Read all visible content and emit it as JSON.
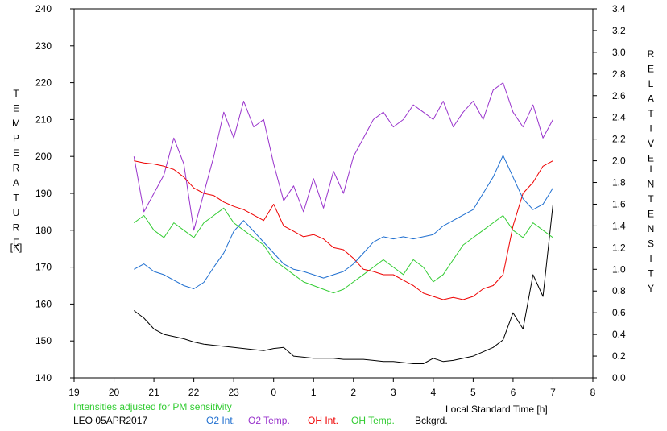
{
  "chart_data": {
    "type": "line",
    "title": "",
    "xlabel": "Local Standard Time [h]",
    "ylabel_left": "TEMPERATURE [K]",
    "ylabel_right": "RELATIVE INTENSITY",
    "note": "Intensities adjusted for PM sensitivity",
    "station": "LEO 05APR2017",
    "x_tick_labels": [
      "19",
      "20",
      "21",
      "22",
      "23",
      "0",
      "1",
      "2",
      "3",
      "4",
      "5",
      "6",
      "7",
      "8"
    ],
    "x_range_hours_after_19": [
      0,
      13
    ],
    "y_left_ticks": [
      140,
      150,
      160,
      170,
      180,
      190,
      200,
      210,
      220,
      230,
      240
    ],
    "y_left_range": [
      140,
      240
    ],
    "y_right_ticks": [
      "0.0",
      "0.2",
      "0.4",
      "0.6",
      "0.8",
      "1.0",
      "1.2",
      "1.4",
      "1.6",
      "1.8",
      "2.0",
      "2.2",
      "2.4",
      "2.6",
      "2.8",
      "3.0",
      "3.2",
      "3.4"
    ],
    "y_right_range": [
      0,
      3.4
    ],
    "grid": false,
    "legend_position": "bottom",
    "series": [
      {
        "name": "O2 Int.",
        "color": "#1f6fd0",
        "axis": "right",
        "hours": [
          "20:30",
          "20:45",
          "21:00",
          "21:15",
          "21:30",
          "21:45",
          "22:00",
          "22:15",
          "22:30",
          "22:45",
          "23:00",
          "23:15",
          "23:30",
          "23:45",
          "0:00",
          "0:15",
          "0:30",
          "0:45",
          "1:00",
          "1:15",
          "1:30",
          "1:45",
          "2:00",
          "2:15",
          "2:30",
          "2:45",
          "3:00",
          "3:15",
          "3:30",
          "3:45",
          "4:00",
          "4:15",
          "4:30",
          "4:45",
          "5:00",
          "5:15",
          "5:30",
          "5:45",
          "6:00",
          "6:15",
          "6:30",
          "6:45",
          "7:00"
        ],
        "values": [
          1.0,
          1.05,
          0.98,
          0.95,
          0.9,
          0.85,
          0.82,
          0.88,
          1.02,
          1.15,
          1.35,
          1.45,
          1.35,
          1.25,
          1.15,
          1.05,
          1.0,
          0.98,
          0.95,
          0.92,
          0.95,
          0.98,
          1.05,
          1.15,
          1.25,
          1.3,
          1.28,
          1.3,
          1.28,
          1.3,
          1.32,
          1.4,
          1.45,
          1.5,
          1.55,
          1.7,
          1.85,
          2.05,
          1.85,
          1.65,
          1.55,
          1.6,
          1.75
        ]
      },
      {
        "name": "O2 Temp.",
        "color": "#9933cc",
        "axis": "left",
        "hours": [
          "20:30",
          "20:45",
          "21:00",
          "21:15",
          "21:30",
          "21:45",
          "22:00",
          "22:15",
          "22:30",
          "22:45",
          "23:00",
          "23:15",
          "23:30",
          "23:45",
          "0:00",
          "0:15",
          "0:30",
          "0:45",
          "1:00",
          "1:15",
          "1:30",
          "1:45",
          "2:00",
          "2:15",
          "2:30",
          "2:45",
          "3:00",
          "3:15",
          "3:30",
          "3:45",
          "4:00",
          "4:15",
          "4:30",
          "4:45",
          "5:00",
          "5:15",
          "5:30",
          "5:45",
          "6:00",
          "6:15",
          "6:30",
          "6:45",
          "7:00"
        ],
        "values": [
          200,
          185,
          190,
          195,
          205,
          198,
          180,
          190,
          200,
          212,
          205,
          215,
          208,
          210,
          198,
          188,
          192,
          185,
          194,
          186,
          196,
          190,
          200,
          205,
          210,
          212,
          208,
          210,
          214,
          212,
          210,
          215,
          208,
          212,
          215,
          210,
          218,
          220,
          212,
          208,
          214,
          205,
          210
        ]
      },
      {
        "name": "OH Int.",
        "color": "#ee0000",
        "axis": "right",
        "hours": [
          "20:30",
          "20:45",
          "21:00",
          "21:15",
          "21:30",
          "21:45",
          "22:00",
          "22:15",
          "22:30",
          "22:45",
          "23:00",
          "23:15",
          "23:30",
          "23:45",
          "0:00",
          "0:15",
          "0:30",
          "0:45",
          "1:00",
          "1:15",
          "1:30",
          "1:45",
          "2:00",
          "2:15",
          "2:30",
          "2:45",
          "3:00",
          "3:15",
          "3:30",
          "3:45",
          "4:00",
          "4:15",
          "4:30",
          "4:45",
          "5:00",
          "5:15",
          "5:30",
          "5:45",
          "6:00",
          "6:15",
          "6:30",
          "6:45",
          "7:00"
        ],
        "values": [
          2.0,
          1.98,
          1.97,
          1.95,
          1.92,
          1.85,
          1.75,
          1.7,
          1.68,
          1.62,
          1.58,
          1.55,
          1.5,
          1.45,
          1.6,
          1.4,
          1.35,
          1.3,
          1.32,
          1.28,
          1.2,
          1.18,
          1.1,
          1.0,
          0.98,
          0.95,
          0.95,
          0.9,
          0.85,
          0.78,
          0.75,
          0.72,
          0.74,
          0.72,
          0.75,
          0.82,
          0.85,
          0.95,
          1.4,
          1.7,
          1.8,
          1.95,
          2.0
        ]
      },
      {
        "name": "OH Temp.",
        "color": "#33cc33",
        "axis": "left",
        "hours": [
          "20:30",
          "20:45",
          "21:00",
          "21:15",
          "21:30",
          "21:45",
          "22:00",
          "22:15",
          "22:30",
          "22:45",
          "23:00",
          "23:15",
          "23:30",
          "23:45",
          "0:00",
          "0:15",
          "0:30",
          "0:45",
          "1:00",
          "1:15",
          "1:30",
          "1:45",
          "2:00",
          "2:15",
          "2:30",
          "2:45",
          "3:00",
          "3:15",
          "3:30",
          "3:45",
          "4:00",
          "4:15",
          "4:30",
          "4:45",
          "5:00",
          "5:15",
          "5:30",
          "5:45",
          "6:00",
          "6:15",
          "6:30",
          "6:45",
          "7:00"
        ],
        "values": [
          182,
          184,
          180,
          178,
          182,
          180,
          178,
          182,
          184,
          186,
          182,
          180,
          178,
          176,
          172,
          170,
          168,
          166,
          165,
          164,
          163,
          164,
          166,
          168,
          170,
          172,
          170,
          168,
          172,
          170,
          166,
          168,
          172,
          176,
          178,
          180,
          182,
          184,
          180,
          178,
          182,
          180,
          178
        ]
      },
      {
        "name": "Bckgrd.",
        "color": "#000000",
        "axis": "right",
        "hours": [
          "20:30",
          "20:45",
          "21:00",
          "21:15",
          "21:30",
          "21:45",
          "22:00",
          "22:15",
          "22:30",
          "22:45",
          "23:00",
          "23:15",
          "23:30",
          "23:45",
          "0:00",
          "0:15",
          "0:30",
          "0:45",
          "1:00",
          "1:15",
          "1:30",
          "1:45",
          "2:00",
          "2:15",
          "2:30",
          "2:45",
          "3:00",
          "3:15",
          "3:30",
          "3:45",
          "4:00",
          "4:15",
          "4:30",
          "4:45",
          "5:00",
          "5:15",
          "5:30",
          "5:45",
          "6:00",
          "6:15",
          "6:30",
          "6:45",
          "7:00"
        ],
        "values": [
          0.62,
          0.55,
          0.45,
          0.4,
          0.38,
          0.36,
          0.33,
          0.31,
          0.3,
          0.29,
          0.28,
          0.27,
          0.26,
          0.25,
          0.27,
          0.28,
          0.2,
          0.19,
          0.18,
          0.18,
          0.18,
          0.17,
          0.17,
          0.17,
          0.16,
          0.15,
          0.15,
          0.14,
          0.13,
          0.13,
          0.18,
          0.15,
          0.16,
          0.18,
          0.2,
          0.24,
          0.28,
          0.35,
          0.6,
          0.45,
          0.95,
          0.75,
          1.6
        ]
      }
    ]
  }
}
